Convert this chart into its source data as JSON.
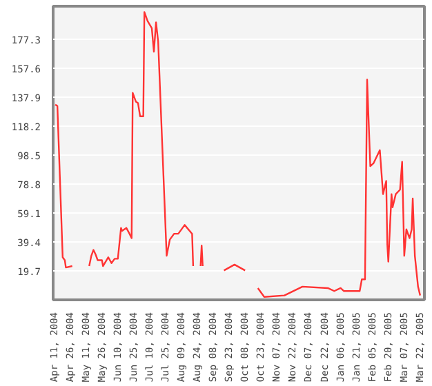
{
  "chart_data": {
    "type": "line",
    "x": [
      "2004-04-12",
      "2004-04-14",
      "2004-04-19",
      "2004-04-21",
      "2004-04-22",
      "2004-04-28",
      "2004-04-30",
      "2004-05-14",
      "2004-05-16",
      "2004-05-18",
      "2004-05-20",
      "2004-05-22",
      "2004-05-26",
      "2004-05-27",
      "2004-06-01",
      "2004-06-04",
      "2004-06-07",
      "2004-06-10",
      "2004-06-13",
      "2004-06-14",
      "2004-06-18",
      "2004-06-21",
      "2004-06-23",
      "2004-06-24",
      "2004-06-27",
      "2004-06-29",
      "2004-07-01",
      "2004-07-04",
      "2004-07-05",
      "2004-07-08",
      "2004-07-12",
      "2004-07-14",
      "2004-07-16",
      "2004-07-18",
      "2004-07-26",
      "2004-07-29",
      "2004-08-02",
      "2004-08-06",
      "2004-08-12",
      "2004-08-19",
      "2004-08-20",
      "2004-08-22",
      "2004-08-27",
      "2004-08-28",
      "2004-08-29",
      "2004-09-10",
      "2004-09-18",
      "2004-09-28",
      "2004-10-08",
      "2004-10-12",
      "2004-10-20",
      "2004-10-26",
      "2004-11-14",
      "2004-12-01",
      "2004-12-25",
      "2004-12-31",
      "2005-01-06",
      "2005-01-09",
      "2005-01-24",
      "2005-01-26",
      "2005-01-29",
      "2005-01-31",
      "2005-02-03",
      "2005-02-06",
      "2005-02-12",
      "2005-02-15",
      "2005-02-18",
      "2005-02-19",
      "2005-02-20",
      "2005-02-23",
      "2005-02-24",
      "2005-02-27",
      "2005-03-03",
      "2005-03-05",
      "2005-03-07",
      "2005-03-09",
      "2005-03-12",
      "2005-03-14",
      "2005-03-15",
      "2005-03-17",
      "2005-03-20",
      "2005-03-22"
    ],
    "series": [
      {
        "color": "#ff3333",
        "values": [
          133,
          132,
          29,
          27,
          22,
          23,
          null,
          23,
          30,
          34,
          31,
          27,
          27,
          23,
          29,
          25,
          28,
          28,
          49,
          47,
          49,
          45,
          42,
          141,
          135,
          134,
          125,
          125,
          196,
          190,
          185,
          169,
          189,
          176,
          30,
          41,
          45,
          45,
          51,
          45,
          23,
          null,
          23,
          37,
          23,
          null,
          20,
          24,
          20,
          null,
          8,
          2,
          3,
          9,
          8,
          6,
          8,
          6,
          6,
          14,
          14,
          150,
          91,
          93,
          102,
          72,
          81,
          38,
          26,
          72,
          63,
          72,
          75,
          94,
          30,
          48,
          42,
          48,
          69,
          30,
          9,
          3
        ]
      }
    ],
    "xlim": [
      "2004-04-10",
      "2005-03-26"
    ],
    "xticks": [
      {
        "value": "2004-04-11",
        "label": "Apr 11, 2004"
      },
      {
        "value": "2004-04-26",
        "label": "Apr 26, 2004"
      },
      {
        "value": "2004-05-11",
        "label": "May 11, 2004"
      },
      {
        "value": "2004-05-26",
        "label": "May 26, 2004"
      },
      {
        "value": "2004-06-10",
        "label": "Jun 10, 2004"
      },
      {
        "value": "2004-06-25",
        "label": "Jun 25, 2004"
      },
      {
        "value": "2004-07-10",
        "label": "Jul 10, 2004"
      },
      {
        "value": "2004-07-25",
        "label": "Jul 25, 2004"
      },
      {
        "value": "2004-08-09",
        "label": "Aug 09, 2004"
      },
      {
        "value": "2004-08-24",
        "label": "Aug 24, 2004"
      },
      {
        "value": "2004-09-08",
        "label": "Sep 08, 2004"
      },
      {
        "value": "2004-09-23",
        "label": "Sep 23, 2004"
      },
      {
        "value": "2004-10-08",
        "label": "Oct 08, 2004"
      },
      {
        "value": "2004-10-23",
        "label": "Oct 23, 2004"
      },
      {
        "value": "2004-11-07",
        "label": "Nov 07, 2004"
      },
      {
        "value": "2004-11-22",
        "label": "Nov 22, 2004"
      },
      {
        "value": "2004-12-07",
        "label": "Dec 07, 2004"
      },
      {
        "value": "2004-12-22",
        "label": "Dec 22, 2004"
      },
      {
        "value": "2005-01-06",
        "label": "Jan 06, 2005"
      },
      {
        "value": "2005-01-21",
        "label": "Jan 21, 2005"
      },
      {
        "value": "2005-02-05",
        "label": "Feb 05, 2005"
      },
      {
        "value": "2005-02-20",
        "label": "Feb 20, 2005"
      },
      {
        "value": "2005-03-07",
        "label": "Mar 07, 2005"
      },
      {
        "value": "2005-03-22",
        "label": "Mar 22, 2005"
      }
    ],
    "ylim": [
      0,
      200
    ],
    "yticks": [
      19.7,
      39.4,
      59.1,
      78.8,
      98.5,
      118.2,
      137.9,
      157.6,
      177.3
    ],
    "grid": "y"
  }
}
